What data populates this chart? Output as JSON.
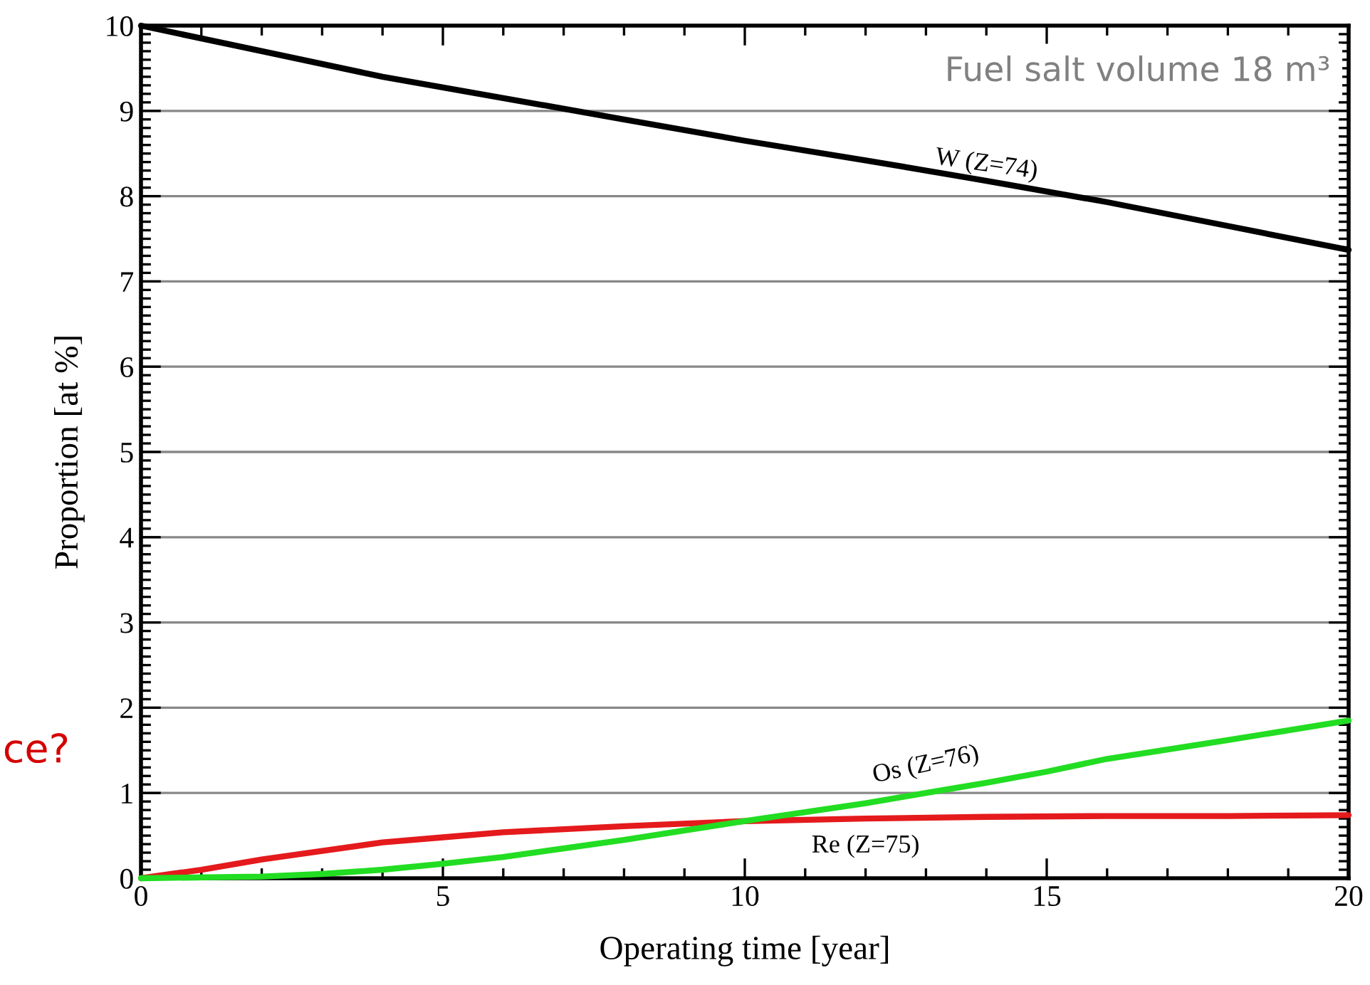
{
  "chart_data": {
    "type": "line",
    "xlabel": "Operating time [year]",
    "ylabel": "Proportion [at %]",
    "xlim": [
      0,
      20
    ],
    "xticks": [
      0,
      5,
      10,
      15,
      20
    ],
    "ylim": [
      0,
      10
    ],
    "yticks": [
      0,
      1,
      2,
      3,
      4,
      5,
      6,
      7,
      8,
      9,
      10
    ],
    "grid": "y",
    "legend": false,
    "marker": "none",
    "line_style": "solid",
    "series": [
      {
        "name": "W (Z=74)",
        "color": "#000000",
        "x": [
          0,
          2,
          4,
          6,
          8,
          10,
          12,
          14,
          16,
          18,
          20
        ],
        "values": [
          10,
          9.7,
          9.4,
          9.15,
          8.9,
          8.65,
          8.42,
          8.18,
          7.93,
          7.65,
          7.37
        ]
      },
      {
        "name": "Re (Z=75)",
        "color": "#e41a1c",
        "x": [
          0,
          1,
          2,
          3,
          4,
          5,
          6,
          8,
          10,
          12,
          14,
          16,
          18,
          20
        ],
        "values": [
          0,
          0.1,
          0.22,
          0.32,
          0.42,
          0.48,
          0.54,
          0.61,
          0.67,
          0.7,
          0.72,
          0.73,
          0.73,
          0.74
        ]
      },
      {
        "name": "Os (Z=76)",
        "color": "#22dd22",
        "x": [
          0,
          2,
          3,
          4,
          5,
          6,
          8,
          10,
          12,
          13,
          14,
          15,
          16,
          18,
          20
        ],
        "values": [
          0,
          0.02,
          0.05,
          0.1,
          0.17,
          0.25,
          0.45,
          0.67,
          0.88,
          1.0,
          1.12,
          1.25,
          1.4,
          1.62,
          1.85
        ]
      }
    ],
    "annotations": [
      "Fuel salt volume 18 m³",
      "ce?"
    ]
  }
}
